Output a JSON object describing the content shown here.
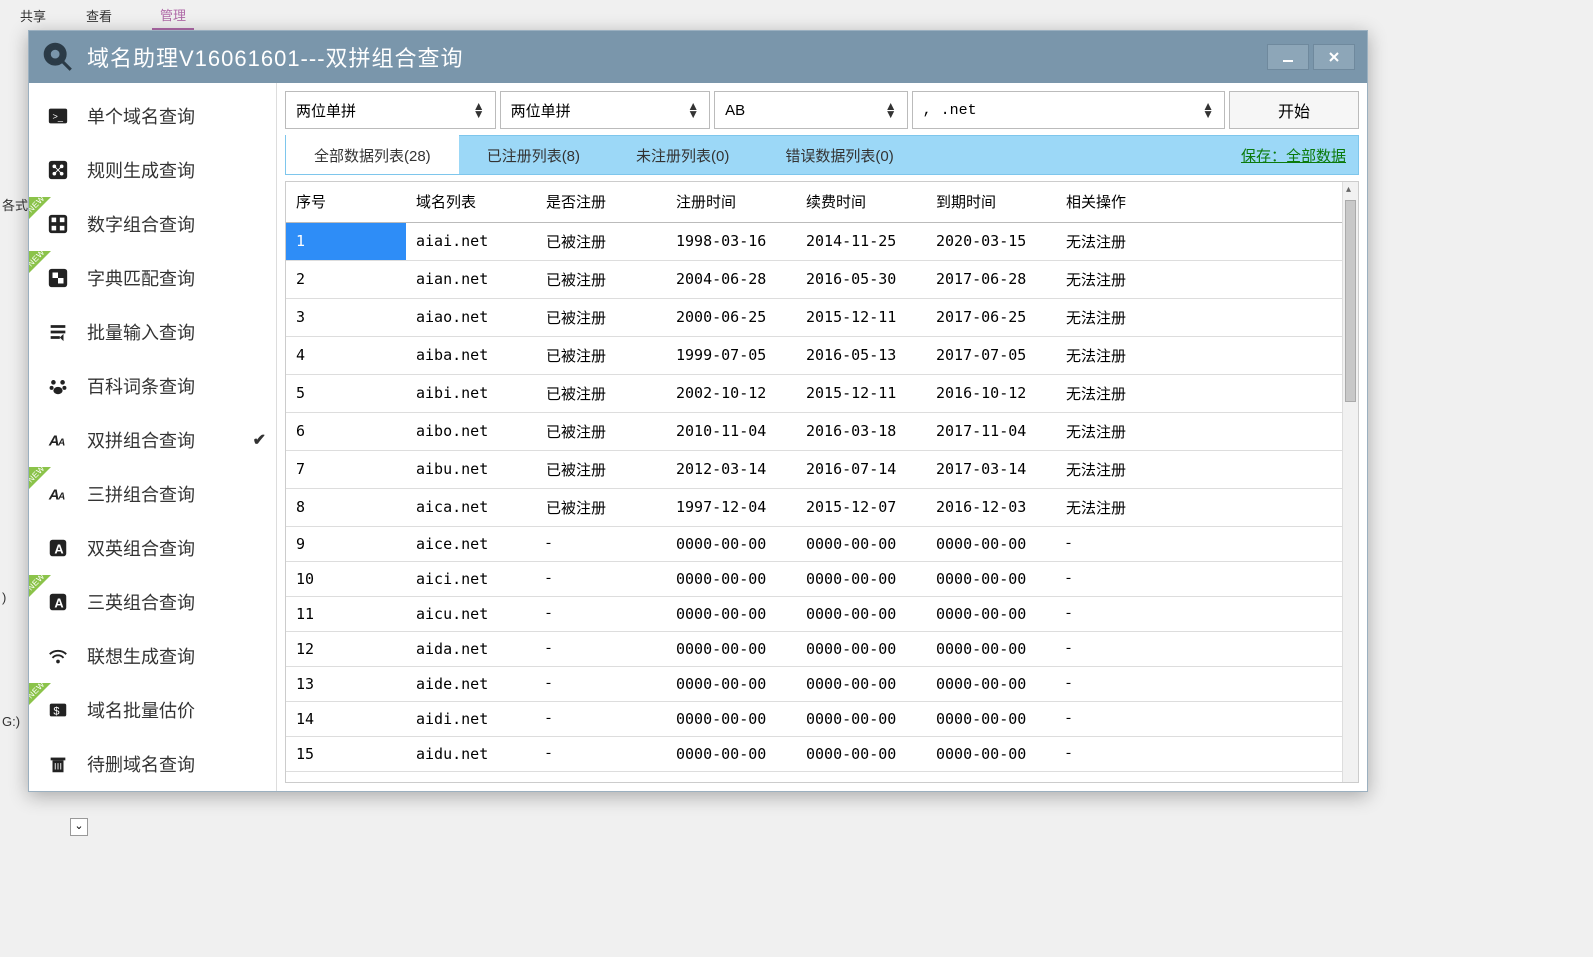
{
  "desktop": {
    "t1": "共享",
    "t2": "查看",
    "t3": "管理",
    "side1": "各式",
    "side2": ")",
    "side3": "G:)"
  },
  "window": {
    "title": "域名助理V16061601---双拼组合查询"
  },
  "sidebar": {
    "items": [
      {
        "label": "单个域名查询",
        "icon": "terminal",
        "new": false,
        "active": false
      },
      {
        "label": "规则生成查询",
        "icon": "share",
        "new": false,
        "active": false
      },
      {
        "label": "数字组合查询",
        "icon": "grid",
        "new": true,
        "active": false
      },
      {
        "label": "字典匹配查询",
        "icon": "puzzle",
        "new": true,
        "active": false
      },
      {
        "label": "批量输入查询",
        "icon": "list",
        "new": false,
        "active": false
      },
      {
        "label": "百科词条查询",
        "icon": "paw",
        "new": false,
        "active": false
      },
      {
        "label": "双拼组合查询",
        "icon": "aa",
        "new": false,
        "active": true
      },
      {
        "label": "三拼组合查询",
        "icon": "aa",
        "new": true,
        "active": false
      },
      {
        "label": "双英组合查询",
        "icon": "a-box",
        "new": false,
        "active": false
      },
      {
        "label": "三英组合查询",
        "icon": "a-box",
        "new": true,
        "active": false
      },
      {
        "label": "联想生成查询",
        "icon": "wifi",
        "new": false,
        "active": false
      },
      {
        "label": "域名批量估价",
        "icon": "price",
        "new": true,
        "active": false
      },
      {
        "label": "待删域名查询",
        "icon": "trash",
        "new": false,
        "active": false
      }
    ]
  },
  "toolbar": {
    "sel1": "两位单拼",
    "sel2": "两位单拼",
    "sel3": "AB",
    "sel4": ", .net",
    "start": "开始"
  },
  "tabs": {
    "t0": "全部数据列表(28)",
    "t1": "已注册列表(8)",
    "t2": "未注册列表(0)",
    "t3": "错误数据列表(0)",
    "save": "保存：全部数据"
  },
  "table": {
    "columns": [
      "序号",
      "域名列表",
      "是否注册",
      "注册时间",
      "续费时间",
      "到期时间",
      "相关操作"
    ],
    "colWidths": [
      "120px",
      "130px",
      "130px",
      "130px",
      "130px",
      "130px",
      "auto"
    ],
    "rows": [
      [
        "1",
        "aiai.net",
        "已被注册",
        "1998-03-16",
        "2014-11-25",
        "2020-03-15",
        "无法注册"
      ],
      [
        "2",
        "aian.net",
        "已被注册",
        "2004-06-28",
        "2016-05-30",
        "2017-06-28",
        "无法注册"
      ],
      [
        "3",
        "aiao.net",
        "已被注册",
        "2000-06-25",
        "2015-12-11",
        "2017-06-25",
        "无法注册"
      ],
      [
        "4",
        "aiba.net",
        "已被注册",
        "1999-07-05",
        "2016-05-13",
        "2017-07-05",
        "无法注册"
      ],
      [
        "5",
        "aibi.net",
        "已被注册",
        "2002-10-12",
        "2015-12-11",
        "2016-10-12",
        "无法注册"
      ],
      [
        "6",
        "aibo.net",
        "已被注册",
        "2010-11-04",
        "2016-03-18",
        "2017-11-04",
        "无法注册"
      ],
      [
        "7",
        "aibu.net",
        "已被注册",
        "2012-03-14",
        "2016-07-14",
        "2017-03-14",
        "无法注册"
      ],
      [
        "8",
        "aica.net",
        "已被注册",
        "1997-12-04",
        "2015-12-07",
        "2016-12-03",
        "无法注册"
      ],
      [
        "9",
        "aice.net",
        "-",
        "0000-00-00",
        "0000-00-00",
        "0000-00-00",
        "-"
      ],
      [
        "10",
        "aici.net",
        "-",
        "0000-00-00",
        "0000-00-00",
        "0000-00-00",
        "-"
      ],
      [
        "11",
        "aicu.net",
        "-",
        "0000-00-00",
        "0000-00-00",
        "0000-00-00",
        "-"
      ],
      [
        "12",
        "aida.net",
        "-",
        "0000-00-00",
        "0000-00-00",
        "0000-00-00",
        "-"
      ],
      [
        "13",
        "aide.net",
        "-",
        "0000-00-00",
        "0000-00-00",
        "0000-00-00",
        "-"
      ],
      [
        "14",
        "aidi.net",
        "-",
        "0000-00-00",
        "0000-00-00",
        "0000-00-00",
        "-"
      ],
      [
        "15",
        "aidu.net",
        "-",
        "0000-00-00",
        "0000-00-00",
        "0000-00-00",
        "-"
      ]
    ],
    "selectedRow": 0
  },
  "colors": {
    "titlebar": "#7a96ab",
    "tabbar": "#9cd8f7",
    "selection": "#2e8df7",
    "saveLink": "#0b7a0b"
  }
}
